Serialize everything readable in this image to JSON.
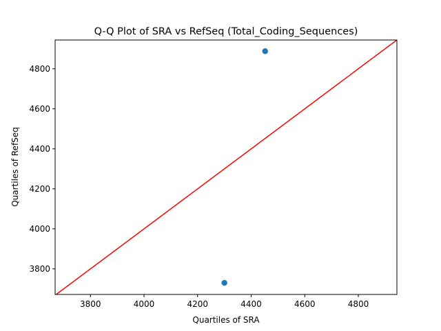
{
  "chart_data": {
    "type": "scatter",
    "title": "Q-Q Plot of SRA vs RefSeq (Total_Coding_Sequences)",
    "xlabel": "Quartiles of SRA",
    "ylabel": "Quartiles of RefSeq",
    "xlim": [
      3668,
      4944
    ],
    "ylim": [
      3672,
      4944
    ],
    "xticks": [
      3800,
      4000,
      4200,
      4400,
      4600,
      4800
    ],
    "yticks": [
      3800,
      4000,
      4200,
      4400,
      4600,
      4800
    ],
    "grid": false,
    "points": [
      {
        "x": 4300,
        "y": 3730
      },
      {
        "x": 4452,
        "y": 4888
      }
    ],
    "reference_line": {
      "slope": 1,
      "intercept": 0
    },
    "colors": {
      "points": "#1f77b4",
      "line": "#ff0000",
      "axes": "#000000"
    }
  }
}
